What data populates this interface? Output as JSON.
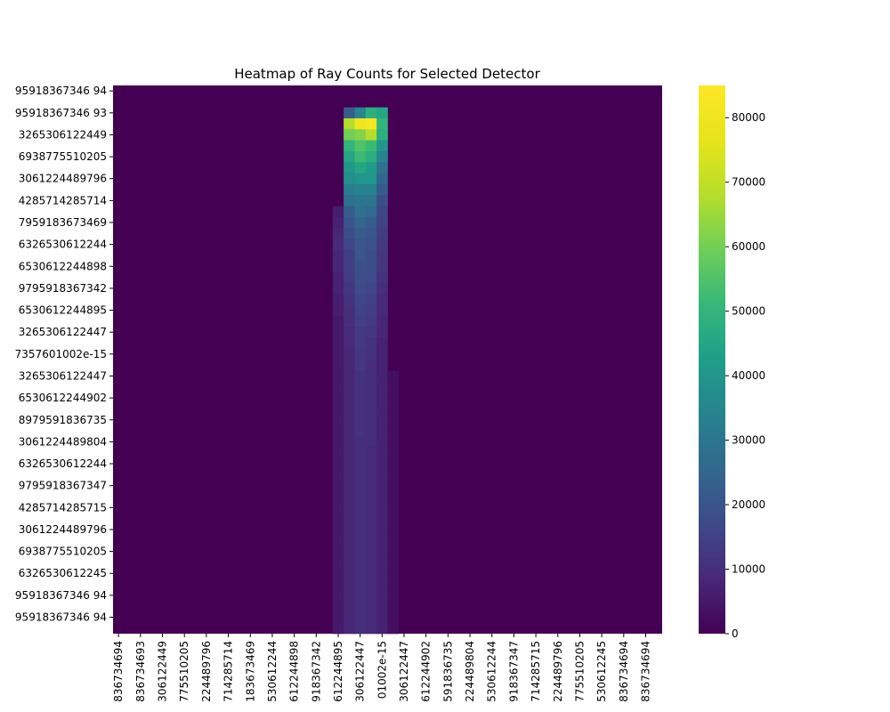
{
  "chart_data": {
    "type": "heatmap",
    "title": "Heatmap of Ray Counts for Selected Detector",
    "xlabel": "",
    "ylabel": "",
    "colormap": "viridis",
    "colorbar": {
      "vmin": 0,
      "vmax": 85000,
      "ticks": [
        0,
        10000,
        20000,
        30000,
        40000,
        50000,
        60000,
        70000,
        80000
      ],
      "tick_labels": [
        "0",
        "10000",
        "20000",
        "30000",
        "40000",
        "50000",
        "60000",
        "70000",
        "80000"
      ]
    },
    "grid": false,
    "n_rows": 50,
    "n_cols": 50,
    "y_tick_labels": [
      "95918367346 94",
      "95918367346 93",
      "3265306122449",
      "6938775510205",
      "3061224489796",
      "4285714285714",
      "7959183673469",
      "6326530612244",
      "6530612244898",
      "9795918367342",
      "6530612244895",
      "3265306122447",
      "7357601002e-15",
      "3265306122447",
      "6530612244902",
      "8979591836735",
      "3061224489804",
      "6326530612244",
      "9795918367347",
      "4285714285715",
      "3061224489796",
      "6938775510205",
      "6326530612245",
      "95918367346 94",
      "95918367346 94"
    ],
    "x_tick_labels": [
      "836734694",
      "836734693",
      "306122449",
      "775510205",
      "224489796",
      "714285714",
      "183673469",
      "530612244",
      "612244898",
      "918367342",
      "612244895",
      "306122447",
      "01002e-15",
      "306122447",
      "612244902",
      "591836735",
      "224489804",
      "530612244",
      "918367347",
      "714285715",
      "224489796",
      "775510205",
      "530612245",
      "836734694",
      "836734694"
    ],
    "nonzero_cells": [
      {
        "row": 2,
        "cols": [
          21,
          22,
          23,
          24
        ],
        "values": [
          22000,
          35000,
          48000,
          45000
        ]
      },
      {
        "row": 3,
        "cols": [
          21,
          22,
          23,
          24
        ],
        "values": [
          68000,
          80000,
          84000,
          50000
        ]
      },
      {
        "row": 4,
        "cols": [
          21,
          22,
          23,
          24
        ],
        "values": [
          60000,
          62000,
          68000,
          48000
        ]
      },
      {
        "row": 5,
        "cols": [
          21,
          22,
          23,
          24
        ],
        "values": [
          50000,
          55000,
          52000,
          40000
        ]
      },
      {
        "row": 6,
        "cols": [
          21,
          22,
          23,
          24
        ],
        "values": [
          45000,
          52000,
          48000,
          35000
        ]
      },
      {
        "row": 7,
        "cols": [
          21,
          22,
          23,
          24
        ],
        "values": [
          40000,
          45000,
          42000,
          28000
        ]
      },
      {
        "row": 8,
        "cols": [
          21,
          22,
          23,
          24
        ],
        "values": [
          38000,
          40000,
          40000,
          25000
        ]
      },
      {
        "row": 9,
        "cols": [
          21,
          22,
          23,
          24
        ],
        "values": [
          32000,
          34000,
          34000,
          22000
        ]
      },
      {
        "row": 10,
        "cols": [
          21,
          22,
          23,
          24
        ],
        "values": [
          28000,
          30000,
          30000,
          18000
        ]
      },
      {
        "row": 11,
        "cols": [
          20,
          21,
          22,
          23,
          24
        ],
        "values": [
          6000,
          22000,
          28000,
          26000,
          16000
        ]
      },
      {
        "row": 12,
        "cols": [
          20,
          21,
          22,
          23,
          24
        ],
        "values": [
          7000,
          20000,
          25000,
          22000,
          15000
        ]
      },
      {
        "row": 13,
        "cols": [
          20,
          21,
          22,
          23,
          24
        ],
        "values": [
          8000,
          18000,
          22000,
          20000,
          14000
        ]
      },
      {
        "row": 14,
        "cols": [
          20,
          21,
          22,
          23,
          24
        ],
        "values": [
          9000,
          16000,
          20000,
          19000,
          13000
        ]
      },
      {
        "row": 15,
        "cols": [
          20,
          21,
          22,
          23,
          24
        ],
        "values": [
          8000,
          14000,
          20000,
          18000,
          12000
        ]
      },
      {
        "row": 16,
        "cols": [
          20,
          21,
          22,
          23,
          24
        ],
        "values": [
          8000,
          14000,
          19000,
          18000,
          12000
        ]
      },
      {
        "row": 17,
        "cols": [
          20,
          21,
          22,
          23,
          24
        ],
        "values": [
          7000,
          13000,
          18000,
          17000,
          11000
        ]
      },
      {
        "row": 18,
        "cols": [
          20,
          21,
          22,
          23,
          24
        ],
        "values": [
          7000,
          12000,
          17000,
          16000,
          10000
        ]
      },
      {
        "row": 19,
        "cols": [
          20,
          21,
          22,
          23,
          24
        ],
        "values": [
          6000,
          11000,
          16000,
          15000,
          9000
        ]
      },
      {
        "row": 20,
        "cols": [
          20,
          21,
          22,
          23,
          24
        ],
        "values": [
          6000,
          10000,
          15000,
          14000,
          9000
        ]
      },
      {
        "row": 21,
        "cols": [
          20,
          21,
          22,
          23,
          24
        ],
        "values": [
          5000,
          10000,
          14000,
          13000,
          8000
        ]
      },
      {
        "row": 22,
        "cols": [
          20,
          21,
          22,
          23,
          24
        ],
        "values": [
          5000,
          9000,
          13000,
          12000,
          8000
        ]
      },
      {
        "row": 23,
        "cols": [
          20,
          21,
          22,
          23,
          24
        ],
        "values": [
          5000,
          9000,
          13000,
          11000,
          7000
        ]
      },
      {
        "row": 24,
        "cols": [
          20,
          21,
          22,
          23,
          24
        ],
        "values": [
          5000,
          8000,
          12000,
          11000,
          7000
        ]
      },
      {
        "row": 25,
        "cols": [
          20,
          21,
          22,
          23,
          24
        ],
        "values": [
          5000,
          8000,
          12000,
          10000,
          7000
        ]
      },
      {
        "row": 26,
        "cols": [
          20,
          21,
          22,
          23,
          24,
          25
        ],
        "values": [
          5000,
          8000,
          11000,
          10000,
          7000,
          3000
        ]
      },
      {
        "row": 27,
        "cols": [
          20,
          21,
          22,
          23,
          24,
          25
        ],
        "values": [
          5000,
          8000,
          11000,
          10000,
          7000,
          3000
        ]
      },
      {
        "row": 28,
        "cols": [
          20,
          21,
          22,
          23,
          24,
          25
        ],
        "values": [
          5000,
          8000,
          11000,
          10000,
          7000,
          3000
        ]
      },
      {
        "row": 29,
        "cols": [
          20,
          21,
          22,
          23,
          24,
          25
        ],
        "values": [
          5000,
          8000,
          11000,
          10000,
          7000,
          3000
        ]
      },
      {
        "row": 30,
        "cols": [
          20,
          21,
          22,
          23,
          24,
          25
        ],
        "values": [
          5000,
          8000,
          11000,
          10000,
          7000,
          3000
        ]
      },
      {
        "row": 31,
        "cols": [
          20,
          21,
          22,
          23,
          24,
          25
        ],
        "values": [
          5000,
          8000,
          11000,
          10000,
          7000,
          3000
        ]
      },
      {
        "row": 32,
        "cols": [
          20,
          21,
          22,
          23,
          24,
          25
        ],
        "values": [
          5000,
          8000,
          10000,
          10000,
          7000,
          3000
        ]
      },
      {
        "row": 33,
        "cols": [
          20,
          21,
          22,
          23,
          24,
          25
        ],
        "values": [
          5000,
          8000,
          10000,
          9000,
          7000,
          3000
        ]
      },
      {
        "row": 34,
        "cols": [
          20,
          21,
          22,
          23,
          24,
          25
        ],
        "values": [
          5000,
          8000,
          10000,
          9000,
          7000,
          3000
        ]
      },
      {
        "row": 35,
        "cols": [
          20,
          21,
          22,
          23,
          24,
          25
        ],
        "values": [
          5000,
          8000,
          10000,
          9000,
          7000,
          3000
        ]
      },
      {
        "row": 36,
        "cols": [
          20,
          21,
          22,
          23,
          24,
          25
        ],
        "values": [
          5000,
          8000,
          10000,
          9000,
          7000,
          3000
        ]
      },
      {
        "row": 37,
        "cols": [
          20,
          21,
          22,
          23,
          24,
          25
        ],
        "values": [
          5000,
          8000,
          10000,
          9000,
          7000,
          3000
        ]
      },
      {
        "row": 38,
        "cols": [
          20,
          21,
          22,
          23,
          24,
          25
        ],
        "values": [
          5000,
          8000,
          10000,
          9000,
          7000,
          3000
        ]
      },
      {
        "row": 39,
        "cols": [
          20,
          21,
          22,
          23,
          24,
          25
        ],
        "values": [
          5000,
          8000,
          10000,
          9000,
          7000,
          3000
        ]
      },
      {
        "row": 40,
        "cols": [
          20,
          21,
          22,
          23,
          24,
          25
        ],
        "values": [
          5000,
          8000,
          10000,
          9000,
          7000,
          3000
        ]
      },
      {
        "row": 41,
        "cols": [
          20,
          21,
          22,
          23,
          24,
          25
        ],
        "values": [
          5000,
          8000,
          10000,
          9000,
          7000,
          3000
        ]
      },
      {
        "row": 42,
        "cols": [
          20,
          21,
          22,
          23,
          24,
          25
        ],
        "values": [
          5000,
          8000,
          10000,
          9000,
          7000,
          3000
        ]
      },
      {
        "row": 43,
        "cols": [
          20,
          21,
          22,
          23,
          24,
          25
        ],
        "values": [
          5000,
          8000,
          10000,
          9000,
          7000,
          3000
        ]
      },
      {
        "row": 44,
        "cols": [
          20,
          21,
          22,
          23,
          24,
          25
        ],
        "values": [
          5000,
          8000,
          10000,
          9000,
          7000,
          3000
        ]
      },
      {
        "row": 45,
        "cols": [
          20,
          21,
          22,
          23,
          24,
          25
        ],
        "values": [
          5000,
          8000,
          10000,
          9000,
          7000,
          3000
        ]
      },
      {
        "row": 46,
        "cols": [
          20,
          21,
          22,
          23,
          24,
          25
        ],
        "values": [
          5000,
          8000,
          10000,
          9000,
          7000,
          3000
        ]
      },
      {
        "row": 47,
        "cols": [
          20,
          21,
          22,
          23,
          24,
          25
        ],
        "values": [
          5000,
          8000,
          10000,
          9000,
          7000,
          3000
        ]
      },
      {
        "row": 48,
        "cols": [
          20,
          21,
          22,
          23,
          24,
          25
        ],
        "values": [
          5000,
          8000,
          10000,
          9000,
          7000,
          3000
        ]
      },
      {
        "row": 49,
        "cols": [
          20,
          21,
          22,
          23,
          24,
          25
        ],
        "values": [
          5000,
          8000,
          10000,
          9000,
          7000,
          3000
        ]
      }
    ]
  }
}
